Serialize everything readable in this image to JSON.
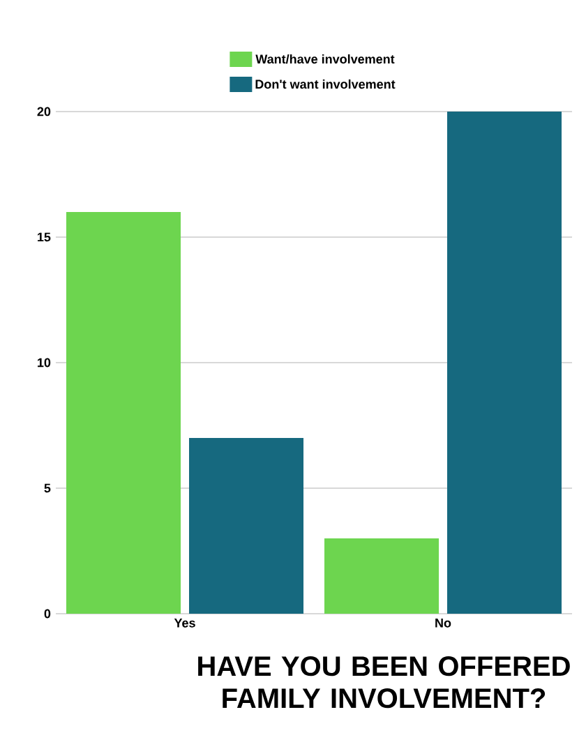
{
  "chart_data": {
    "type": "bar",
    "title": "HAVE YOU BEEN OFFERED FAMILY INVOLVEMENT?",
    "categories": [
      "Yes",
      "No"
    ],
    "series": [
      {
        "name": "Want/have involvement",
        "color": "#6dd54f",
        "values": [
          16,
          3
        ]
      },
      {
        "name": "Don't want involvement",
        "color": "#16697f",
        "values": [
          7,
          20
        ]
      }
    ],
    "ylim": [
      0,
      20
    ],
    "yticks": [
      0,
      5,
      10,
      15,
      20
    ],
    "grid": "y",
    "legend": "top"
  }
}
